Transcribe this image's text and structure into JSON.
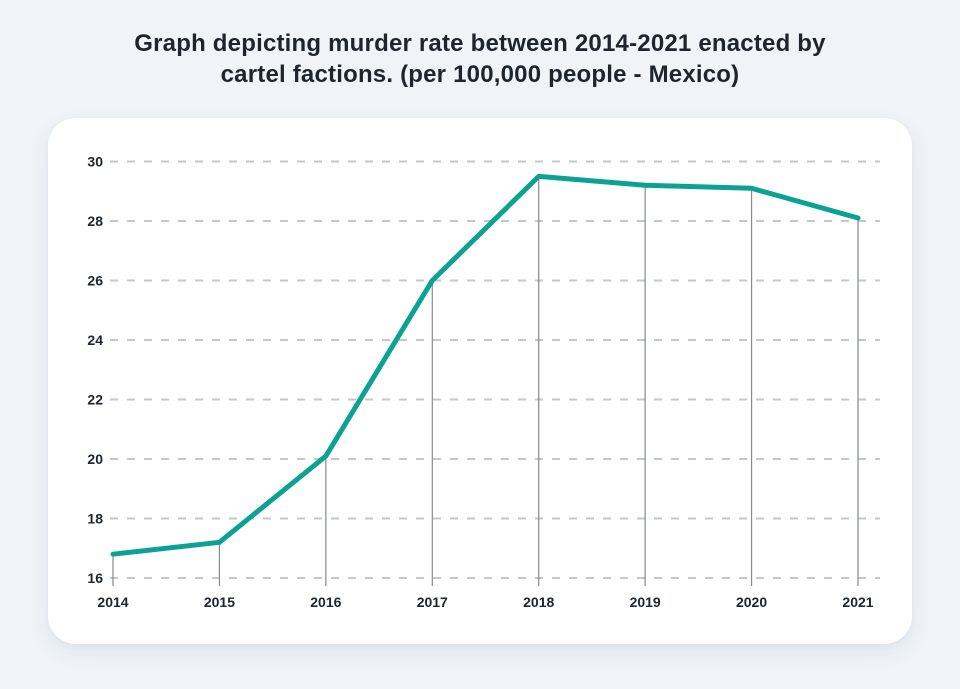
{
  "page": {
    "background_color": "#f0f4f8",
    "card_color": "#ffffff",
    "title_color": "#1e252e"
  },
  "header": {
    "title_line1": "Graph depicting murder rate between 2014-2021 enacted by",
    "title_line2": "cartel factions. (per 100,000 people - Mexico)"
  },
  "chart_data": {
    "type": "line",
    "title": "Graph depicting murder rate between 2014-2021 enacted by cartel factions. (per 100,000 people - Mexico)",
    "categories": [
      "2014",
      "2015",
      "2016",
      "2017",
      "2018",
      "2019",
      "2020",
      "2021"
    ],
    "values": [
      16.8,
      17.2,
      20.1,
      26.0,
      29.5,
      29.2,
      29.1,
      28.1
    ],
    "xlabel": "",
    "ylabel": "",
    "ylim": [
      16,
      30
    ],
    "yticks": [
      16,
      18,
      20,
      22,
      24,
      26,
      28,
      30
    ],
    "grid": "horizontal-dashed",
    "drop_lines": true,
    "legend": "none",
    "colors": {
      "line": "#0ba294",
      "grid": "#c3c8cd",
      "drop_line": "#84898e",
      "tick_label": "#20262e"
    }
  }
}
